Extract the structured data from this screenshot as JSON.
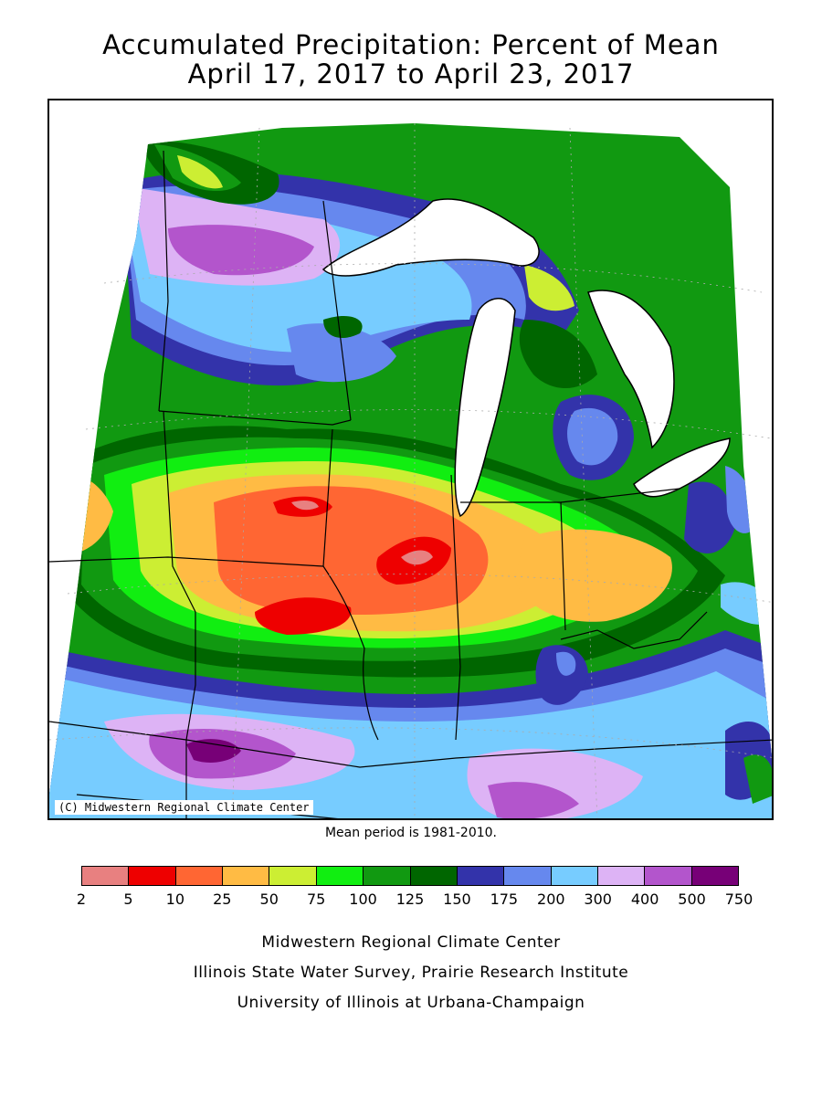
{
  "title": {
    "line1": "Accumulated Precipitation: Percent of Mean",
    "line2": "April 17, 2017 to April 23, 2017"
  },
  "map": {
    "copyright": "(C) Midwestern Regional Climate Center"
  },
  "mean_period": "Mean period is 1981-2010.",
  "legend": {
    "breaks": [
      "2",
      "5",
      "10",
      "25",
      "50",
      "75",
      "100",
      "125",
      "150",
      "175",
      "200",
      "300",
      "400",
      "500",
      "750"
    ],
    "colors": [
      "#e88080",
      "#ee0000",
      "#ff6633",
      "#ffbb44",
      "#ccee33",
      "#11ee11",
      "#119911",
      "#006600",
      "#3333aa",
      "#6688ee",
      "#77ccff",
      "#ddb3f5",
      "#b355cc",
      "#770077"
    ]
  },
  "credits": {
    "line1": "Midwestern Regional Climate Center",
    "line2": "Illinois State Water Survey, Prairie Research Institute",
    "line3": "University of Illinois at Urbana-Champaign"
  }
}
